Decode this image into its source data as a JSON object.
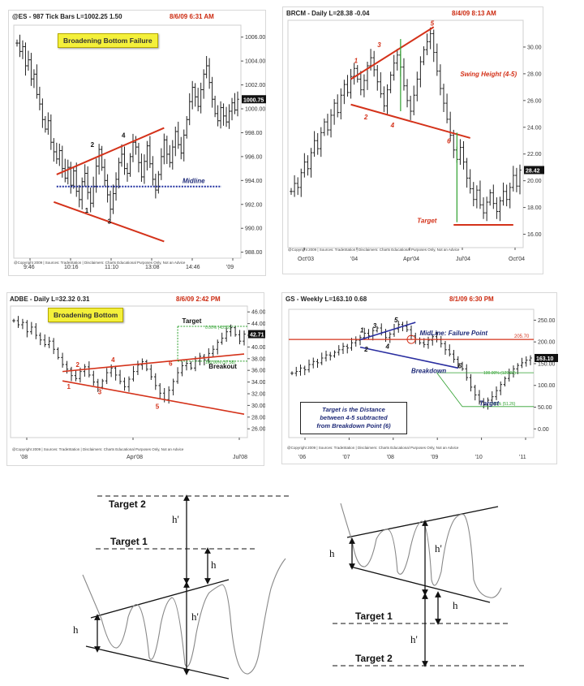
{
  "charts": [
    {
      "header": "@ES - 987 Tick Bars  L=1002.25  1.50",
      "date": "8/6/09 6:31 AM",
      "tag": "Broadening Bottom Failure",
      "labels": {
        "midline": "Midline",
        "p1": "1",
        "p2": "2",
        "p3": "3",
        "p4": "4"
      },
      "price_box": "1000.75",
      "footer": "@Copyright 2009 | Sources: TradeStation | Disclaimers: Charts Educational Purposes Only, Not an Advice",
      "chart_data": {
        "type": "bar",
        "y_ticks": [
          "1006.00",
          "1004.00",
          "1002.00",
          "1000.00",
          "998.00",
          "996.00",
          "994.00",
          "992.00",
          "990.00",
          "988.00"
        ],
        "x_ticks": [
          "9:46",
          "10:16",
          "11:10",
          "13:08",
          "14:46",
          "'09"
        ],
        "ylim": [
          987.5,
          1007
        ],
        "closes": [
          1005.5,
          1004.8,
          1005.2,
          1003.6,
          1004.1,
          1002.5,
          1002.9,
          1001.2,
          1000.4,
          999.1,
          998.3,
          999.0,
          997.2,
          996.4,
          995.8,
          996.5,
          995.0,
          994.2,
          995.1,
          993.6,
          994.8,
          993.1,
          992.4,
          993.9,
          994.6,
          993.0,
          992.1,
          993.5,
          995.2,
          996.6,
          995.1,
          994.0,
          992.8,
          991.6,
          992.9,
          994.1,
          995.5,
          996.2,
          995.0,
          994.6,
          996.0,
          997.2,
          996.8,
          995.5,
          994.3,
          995.6,
          996.9,
          995.4,
          994.1,
          993.2,
          994.5,
          996.0,
          997.4,
          996.2,
          995.5,
          996.8,
          998.1,
          997.0,
          996.3,
          997.8,
          999.1,
          1000.6,
          1001.8,
          1001.0,
          1000.2,
          1001.6,
          1002.9,
          1003.6,
          1002.2,
          1000.8,
          999.6,
          999.0,
          1000.1,
          999.4,
          998.9,
          999.8,
          1000.5,
          999.9,
          1000.8
        ],
        "upper_line": {
          "start": 994.5,
          "end": 998.4
        },
        "lower_line": {
          "start": 992.2,
          "end": 988.9
        },
        "midline": 993.5
      }
    },
    {
      "header": "BRCM - Daily  L=28.38  -0.04",
      "date": "8/4/09 8:13 AM",
      "labels": {
        "swing": "Swing Height (4-5)",
        "target": "Target",
        "p1": "1",
        "p2": "2",
        "p3": "3",
        "p4": "4",
        "p5": "5",
        "p6": "6"
      },
      "price_box": "28.42",
      "footer": "@Copyright 2009 | Sources: TradeStation | Disclaimers: Charts Educational Purposes Only, Not an Advice",
      "chart_data": {
        "type": "bar",
        "y_ticks": [
          "30.00",
          "28.00",
          "26.00",
          "24.00",
          "22.00",
          "20.00",
          "18.00",
          "16.00"
        ],
        "x_ticks": [
          "Oct'03",
          "'04",
          "Apr'04",
          "Jul'04",
          "Oct'04"
        ],
        "ylim": [
          15,
          32
        ],
        "closes": [
          19.2,
          19.8,
          19.5,
          20.6,
          21.4,
          20.9,
          22.1,
          23.0,
          22.4,
          23.6,
          24.4,
          23.8,
          24.9,
          25.8,
          25.1,
          26.4,
          27.2,
          26.6,
          27.8,
          28.4,
          27.6,
          26.8,
          27.5,
          28.6,
          29.2,
          28.3,
          27.4,
          26.5,
          25.6,
          26.8,
          27.9,
          28.8,
          29.4,
          28.5,
          27.1,
          26.0,
          25.2,
          26.4,
          27.6,
          28.9,
          29.8,
          30.4,
          31.0,
          29.6,
          28.2,
          26.9,
          25.8,
          24.6,
          23.4,
          22.3,
          21.6,
          22.5,
          21.4,
          20.2,
          19.4,
          18.6,
          19.3,
          18.2,
          17.6,
          18.4,
          19.1,
          18.3,
          17.7,
          18.5,
          19.2,
          18.6,
          19.5,
          20.4,
          19.6,
          20.8
        ],
        "upper_line": {
          "start": 27.6,
          "end": 31.5
        },
        "lower_line": {
          "start": 25.7,
          "end": 23.2
        },
        "target_line": 16.7
      }
    },
    {
      "header": "ADBE - Daily  L=32.32  0.31",
      "date": "8/6/09 2:42 PM",
      "tag": "Broadening Bottom",
      "labels": {
        "target": "Target",
        "breakout": "Breakout",
        "fib_top": "0.00% (43.52)",
        "fib_mid": "100.00% (37.58)",
        "p1": "1",
        "p2": "2",
        "p3": "3",
        "p4": "4",
        "p5": "5",
        "p6": "6"
      },
      "price_box": "42.71",
      "footer": "@Copyright 2009 | Sources: TradeStation | Disclaimers: Charts Educational Purposes Only, Not an Advice",
      "chart_data": {
        "type": "bar",
        "y_ticks": [
          "46.00",
          "44.00",
          "42.00",
          "40.00",
          "38.00",
          "36.00",
          "34.00",
          "32.00",
          "30.00",
          "28.00",
          "26.00"
        ],
        "x_ticks": [
          "'08",
          "Apr'08",
          "Jul'08"
        ],
        "ylim": [
          24.5,
          47
        ],
        "closes": [
          44.5,
          43.8,
          44.2,
          42.6,
          43.4,
          42.0,
          41.2,
          40.4,
          41.0,
          39.6,
          38.2,
          37.0,
          36.2,
          35.1,
          34.6,
          35.8,
          36.6,
          35.2,
          34.0,
          33.1,
          34.2,
          35.6,
          36.4,
          35.2,
          34.1,
          33.2,
          34.5,
          35.8,
          36.9,
          37.5,
          36.2,
          34.9,
          33.4,
          32.1,
          31.0,
          32.6,
          34.1,
          35.6,
          36.8,
          37.2,
          36.4,
          37.6,
          38.4,
          37.8,
          38.9,
          39.6,
          40.8,
          41.5,
          42.6,
          43.3,
          42.1,
          41.0,
          42.2
        ],
        "upper_line": {
          "start": 35.8,
          "end": 38.8
        },
        "lower_line": {
          "start": 34.2,
          "end": 28.5
        },
        "target_level": 43.52,
        "breakout_level": 37.58
      }
    },
    {
      "header": "GS - Weekly  L=163.10  0.68",
      "date": "8/1/09 6:30 PM",
      "labels": {
        "midline": "MidLine: Failure Point",
        "midline_value": "205.70",
        "breakdown": "Breakdown",
        "target": "Target",
        "fib_top": "100.00% (129.07)",
        "fib_low": "0.00% (51.26)",
        "p1": "1",
        "p2": "2",
        "p3": "3",
        "p4": "4",
        "p5": "5",
        "p6": "6"
      },
      "note": [
        "Target is the Distance",
        "between 4-5 subtracted",
        "from Breakdown Point (6)"
      ],
      "price_box": "163.10",
      "footer": "@Copyright 2009 | Sources: TradeStation | Disclaimers: Charts Educational Purposes Only, Not an Advice",
      "chart_data": {
        "type": "bar",
        "y_ticks": [
          "250.00",
          "200.00",
          "150.00",
          "100.00",
          "50.00",
          "0.00"
        ],
        "x_ticks": [
          "'06",
          "'07",
          "'08",
          "'09",
          "'10",
          "'11"
        ],
        "ylim": [
          -20,
          275
        ],
        "closes": [
          128,
          132,
          140,
          136,
          148,
          155,
          152,
          163,
          170,
          168,
          176,
          182,
          190,
          186,
          198,
          204,
          210,
          220,
          214,
          226,
          232,
          222,
          210,
          218,
          230,
          240,
          236,
          228,
          214,
          206,
          198,
          194,
          204,
          212,
          205,
          196,
          182,
          172,
          160,
          150,
          138,
          118,
          96,
          78,
          62,
          56,
          66,
          74,
          88,
          102,
          116,
          128,
          138,
          146,
          152,
          158,
          163
        ],
        "upper_line": {
          "start": 205,
          "end": 245
        },
        "lower_line": {
          "start": 188,
          "end": 140
        },
        "midline": 205.7,
        "fib_top": 129.07,
        "fib_low": 51.26
      }
    }
  ],
  "diagrams": {
    "left": {
      "target2": "Target 2",
      "target1": "Target 1",
      "h": "h",
      "h_prime": "h'"
    },
    "right": {
      "target1": "Target 1",
      "target2": "Target 2",
      "h": "h",
      "h_prime": "h'"
    }
  }
}
